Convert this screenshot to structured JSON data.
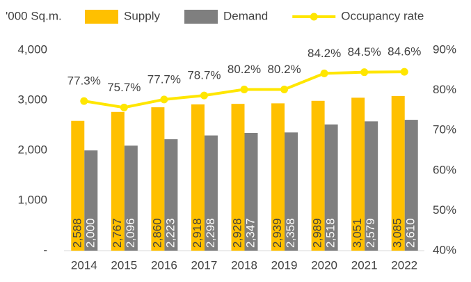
{
  "chart_data": {
    "type": "bar_line",
    "y_label": "'000 Sq.m.",
    "categories": [
      "2014",
      "2015",
      "2016",
      "2017",
      "2018",
      "2019",
      "2020",
      "2021",
      "2022"
    ],
    "series": [
      {
        "name": "Supply",
        "color": "#FFC000",
        "type": "bar",
        "values": [
          2588,
          2767,
          2860,
          2918,
          2928,
          2939,
          2989,
          3051,
          3085
        ],
        "value_labels": [
          "2,588",
          "2,767",
          "2,860",
          "2,918",
          "2,928",
          "2,939",
          "2,989",
          "3,051",
          "3,085"
        ]
      },
      {
        "name": "Demand",
        "color": "#7F7F7F",
        "type": "bar",
        "values": [
          2000,
          2096,
          2223,
          2298,
          2347,
          2358,
          2518,
          2579,
          2610
        ],
        "value_labels": [
          "2,000",
          "2,096",
          "2,223",
          "2,298",
          "2,347",
          "2,358",
          "2,518",
          "2,579",
          "2,610"
        ]
      },
      {
        "name": "Occupancy rate",
        "color": "#FFE600",
        "type": "line",
        "axis": "y2",
        "values": [
          77.3,
          75.7,
          77.7,
          78.7,
          80.2,
          80.2,
          84.2,
          84.5,
          84.6
        ],
        "value_labels": [
          "77.3%",
          "75.7%",
          "77.7%",
          "78.7%",
          "80.2%",
          "80.2%",
          "84.2%",
          "84.5%",
          "84.6%"
        ]
      }
    ],
    "ylim": [
      0,
      4000
    ],
    "yticks": [
      {
        "value": 0,
        "label": "-"
      },
      {
        "value": 1000,
        "label": "1,000"
      },
      {
        "value": 2000,
        "label": "2,000"
      },
      {
        "value": 3000,
        "label": "3,000"
      },
      {
        "value": 4000,
        "label": "4,000"
      }
    ],
    "y2lim": [
      40,
      90
    ],
    "y2ticks": [
      {
        "value": 40,
        "label": "40%"
      },
      {
        "value": 50,
        "label": "50%"
      },
      {
        "value": 60,
        "label": "60%"
      },
      {
        "value": 70,
        "label": "70%"
      },
      {
        "value": 80,
        "label": "80%"
      },
      {
        "value": 90,
        "label": "90%"
      }
    ],
    "grid": false,
    "legend": "top"
  }
}
